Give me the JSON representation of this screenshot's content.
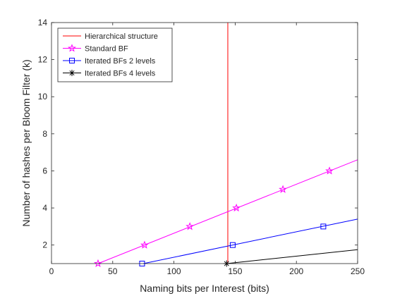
{
  "chart_data": {
    "type": "line",
    "title": "",
    "xlabel": "Naming bits per Interest (bits)",
    "ylabel": "Number of hashes per Bloom Filter (k)",
    "xlim": [
      0,
      250
    ],
    "ylim": [
      1,
      14
    ],
    "xticks": [
      0,
      50,
      100,
      150,
      200,
      250
    ],
    "yticks": [
      2,
      4,
      6,
      8,
      10,
      12,
      14
    ],
    "grid": false,
    "legend_position": "top-left",
    "vline": {
      "name": "Hierarchical structure",
      "x": 144,
      "color": "#ff0000"
    },
    "series": [
      {
        "name": "Standard BF",
        "color": "#ff00ff",
        "marker": "star",
        "x": [
          38,
          250
        ],
        "y": [
          1,
          6.6
        ],
        "markers_x": [
          38,
          76,
          113,
          151,
          189,
          227
        ],
        "markers_y": [
          1,
          2,
          3,
          4,
          5,
          6
        ]
      },
      {
        "name": "Iterated BFs 2 levels",
        "color": "#0000ff",
        "marker": "square",
        "x": [
          75,
          250
        ],
        "y": [
          1,
          3.4
        ],
        "markers_x": [
          74,
          148,
          222
        ],
        "markers_y": [
          1,
          2,
          3
        ]
      },
      {
        "name": "Iterated BFs 4 levels",
        "color": "#000000",
        "marker": "asterisk",
        "x": [
          143,
          250
        ],
        "y": [
          1,
          1.75
        ],
        "markers_x": [
          143
        ],
        "markers_y": [
          1
        ]
      }
    ]
  }
}
